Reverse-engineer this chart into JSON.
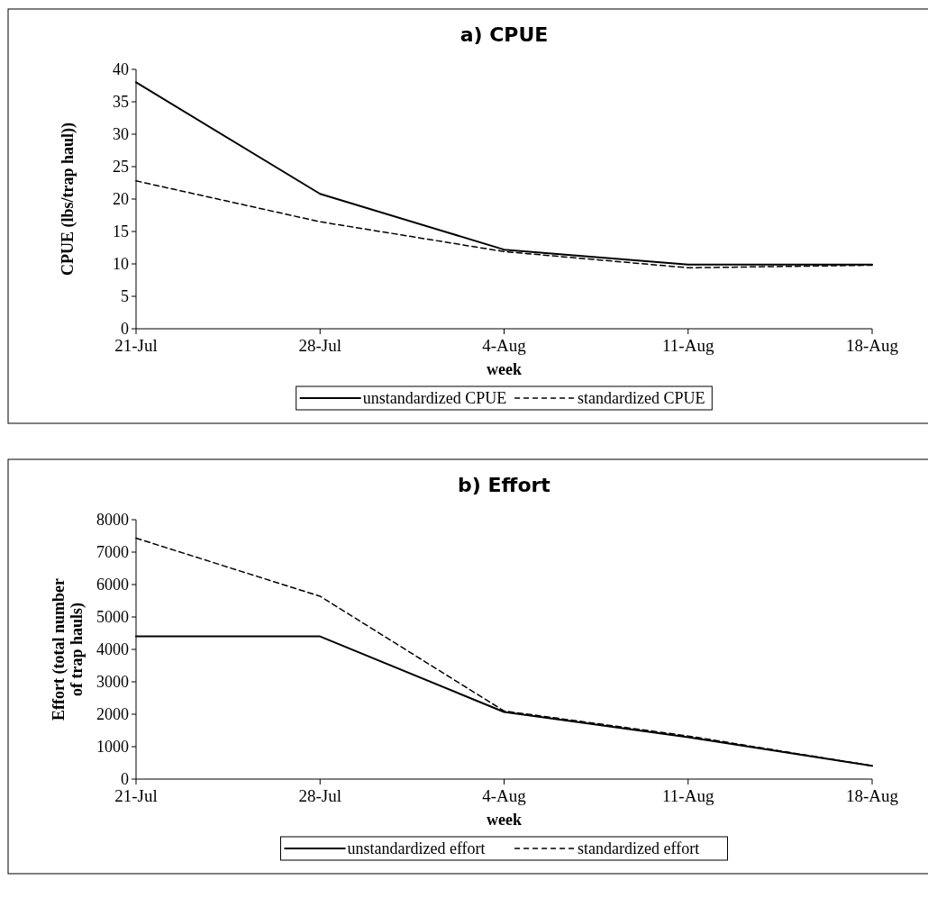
{
  "chart_data": [
    {
      "type": "line",
      "title": "a)  CPUE",
      "xlabel": "week",
      "ylabel": "CPUE (lbs/trap haul))",
      "categories": [
        "21-Jul",
        "28-Jul",
        "4-Aug",
        "11-Aug",
        "18-Aug"
      ],
      "ylim": [
        0,
        40
      ],
      "yticks": [
        0,
        5,
        10,
        15,
        20,
        25,
        30,
        35,
        40
      ],
      "grid": false,
      "legend": "bottom",
      "marker": "none",
      "series": [
        {
          "name": "unstandardized CPUE",
          "color": "#000000",
          "line_style": "solid",
          "values": [
            38.0,
            20.8,
            12.2,
            9.9,
            9.9
          ]
        },
        {
          "name": "standardized CPUE",
          "color": "#000000",
          "line_style": "dashed",
          "values": [
            22.8,
            16.5,
            11.9,
            9.4,
            9.8
          ]
        }
      ]
    },
    {
      "type": "line",
      "title": "b)  Effort",
      "xlabel": "week",
      "ylabel": "Effort (total number of trap hauls)",
      "categories": [
        "21-Jul",
        "28-Jul",
        "4-Aug",
        "11-Aug",
        "18-Aug"
      ],
      "ylim": [
        0,
        8000
      ],
      "yticks": [
        0,
        1000,
        2000,
        3000,
        4000,
        5000,
        6000,
        7000,
        8000
      ],
      "grid": false,
      "legend": "bottom",
      "marker": "none",
      "series": [
        {
          "name": "unstandardized effort",
          "color": "#000000",
          "line_style": "solid",
          "values": [
            4400,
            4400,
            2070,
            1290,
            410
          ]
        },
        {
          "name": "standardized effort",
          "color": "#000000",
          "line_style": "dashed",
          "values": [
            7430,
            5640,
            2100,
            1330,
            410
          ]
        }
      ]
    }
  ]
}
